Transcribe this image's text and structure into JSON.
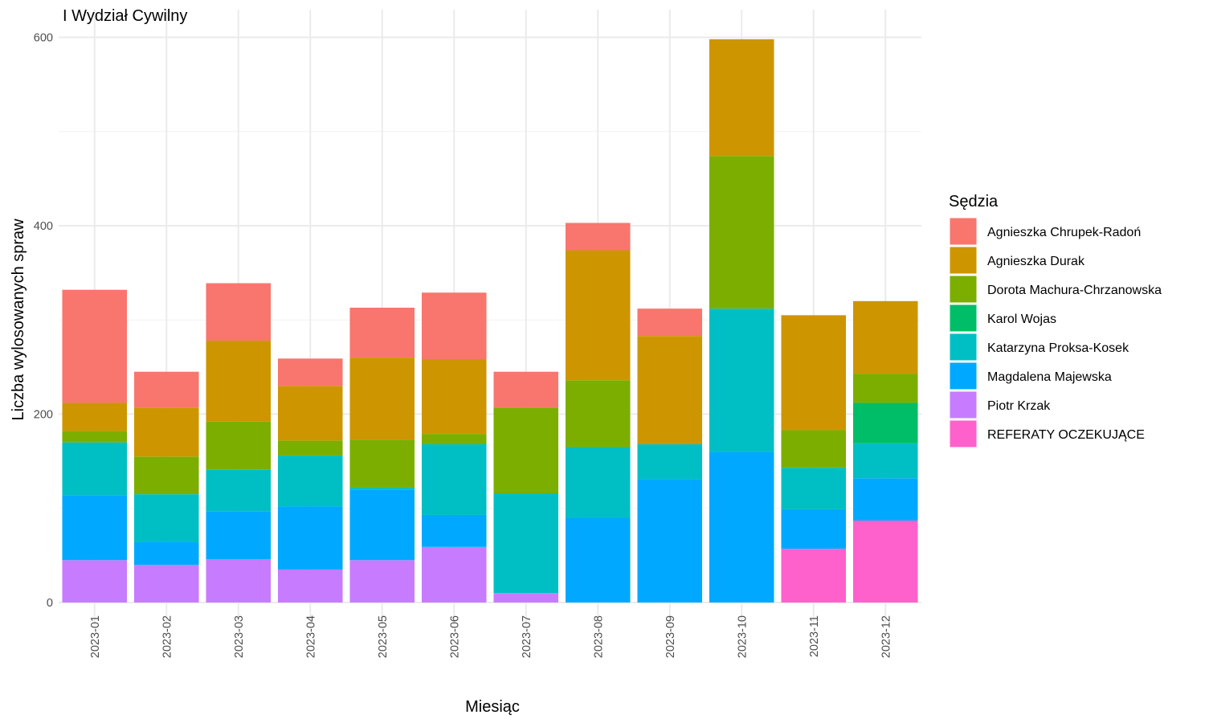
{
  "chart_data": {
    "type": "bar",
    "stacked": true,
    "title": "I Wydział Cywilny",
    "xlabel": "Miesiąc",
    "ylabel": "Liczba wylosowanych spraw",
    "ylim": [
      0,
      600
    ],
    "yticks": [
      0,
      200,
      400,
      600
    ],
    "grid": true,
    "legend_title": "Sędzia",
    "legend_position": "right",
    "categories": [
      "2023-01",
      "2023-02",
      "2023-03",
      "2023-04",
      "2023-05",
      "2023-06",
      "2023-07",
      "2023-08",
      "2023-09",
      "2023-10",
      "2023-11",
      "2023-12"
    ],
    "series": [
      {
        "name": "Agnieszka Chrupek-Radoń",
        "color": "#F8766D",
        "values": [
          120,
          38,
          61,
          29,
          53,
          71,
          38,
          29,
          29,
          0,
          0,
          0
        ]
      },
      {
        "name": "Agnieszka Durak",
        "color": "#CD9600",
        "values": [
          30,
          52,
          86,
          58,
          87,
          79,
          0,
          138,
          115,
          124,
          122,
          77
        ]
      },
      {
        "name": "Dorota Machura-Chrzanowska",
        "color": "#7CAE00",
        "values": [
          12,
          40,
          51,
          16,
          51,
          11,
          91,
          71,
          0,
          162,
          40,
          31
        ]
      },
      {
        "name": "Karol Wojas",
        "color": "#00BE67",
        "values": [
          0,
          0,
          0,
          0,
          0,
          0,
          0,
          0,
          0,
          0,
          0,
          43
        ]
      },
      {
        "name": "Katarzyna Proksa-Kosek",
        "color": "#00BFC4",
        "values": [
          56,
          51,
          44,
          54,
          2,
          75,
          106,
          75,
          37,
          152,
          44,
          37
        ]
      },
      {
        "name": "Magdalena Majewska",
        "color": "#00A9FF",
        "values": [
          69,
          24,
          51,
          67,
          75,
          34,
          0,
          90,
          131,
          160,
          42,
          45
        ]
      },
      {
        "name": "Piotr Krzak",
        "color": "#C77CFF",
        "values": [
          45,
          40,
          46,
          35,
          45,
          59,
          10,
          0,
          0,
          0,
          0,
          0
        ]
      },
      {
        "name": "REFERATY OCZEKUJĄCE",
        "color": "#FF61CC",
        "values": [
          0,
          0,
          0,
          0,
          0,
          0,
          0,
          0,
          0,
          0,
          57,
          87
        ]
      }
    ]
  }
}
